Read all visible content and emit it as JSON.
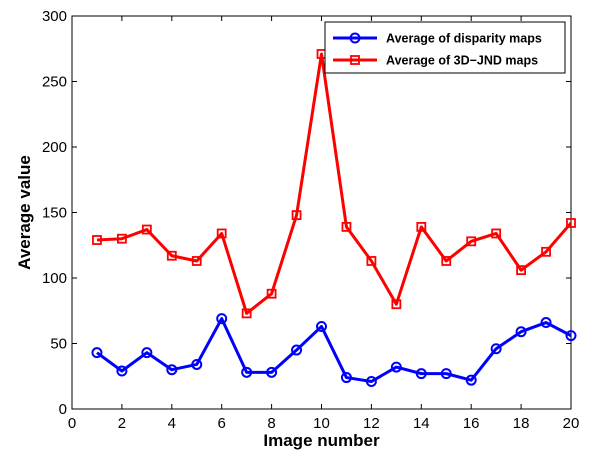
{
  "chart_data": {
    "type": "line",
    "xlabel": "Image number",
    "ylabel": "Average value",
    "xlim": [
      0,
      20
    ],
    "ylim": [
      0,
      300
    ],
    "xticks": [
      0,
      2,
      4,
      6,
      8,
      10,
      12,
      14,
      16,
      18,
      20
    ],
    "yticks": [
      0,
      50,
      100,
      150,
      200,
      250,
      300
    ],
    "grid": false,
    "legend_position": "top-right",
    "x": [
      1,
      2,
      3,
      4,
      5,
      6,
      7,
      8,
      9,
      10,
      11,
      12,
      13,
      14,
      15,
      16,
      17,
      18,
      19,
      20
    ],
    "series": [
      {
        "name": "Average of disparity maps",
        "color": "#0000ff",
        "marker": "circle",
        "values": [
          43,
          29,
          43,
          30,
          34,
          69,
          28,
          28,
          45,
          63,
          24,
          21,
          32,
          27,
          27,
          22,
          46,
          59,
          66,
          56
        ]
      },
      {
        "name": "Average of 3D−JND maps",
        "color": "#ff0000",
        "marker": "square",
        "values": [
          129,
          130,
          137,
          117,
          113,
          134,
          73,
          88,
          148,
          271,
          139,
          113,
          80,
          139,
          113,
          128,
          134,
          106,
          120,
          142
        ]
      }
    ]
  }
}
